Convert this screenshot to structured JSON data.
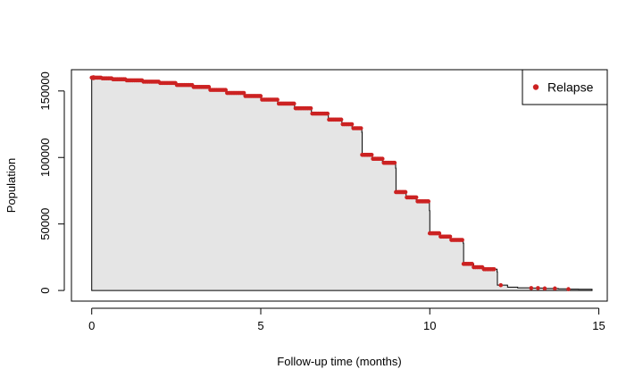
{
  "chart_data": {
    "type": "area",
    "xlabel": "Follow-up time (months)",
    "ylabel": "Population",
    "xlim": [
      -0.6,
      15.25
    ],
    "ylim": [
      -8000,
      166000
    ],
    "x_ticks": [
      0,
      5,
      10,
      15
    ],
    "x_tick_labels": [
      "0",
      "5",
      "10",
      "15"
    ],
    "y_ticks": [
      0,
      50000,
      100000,
      150000
    ],
    "y_tick_labels": [
      "0",
      "50000",
      "100000",
      "150000"
    ],
    "grid": false,
    "legend": {
      "position": "top-right",
      "entries": [
        "Relapse"
      ]
    },
    "colors": {
      "fill": "#e5e5e5",
      "edge": "#000000",
      "points": "#cc2222"
    },
    "series": [
      {
        "name": "Relapse",
        "x": [
          0,
          0.3,
          0.6,
          1.0,
          1.5,
          2.0,
          2.5,
          3.0,
          3.5,
          4.0,
          4.5,
          5.0,
          5.5,
          6.0,
          6.5,
          7.0,
          7.4,
          7.7,
          7.99,
          8.0,
          8.3,
          8.6,
          8.99,
          9.0,
          9.3,
          9.6,
          9.99,
          10.0,
          10.3,
          10.6,
          10.99,
          11.0,
          11.3,
          11.6,
          11.99,
          12.0,
          12.3,
          12.6,
          13.0,
          13.4,
          13.8,
          14.1,
          14.4,
          14.8
        ],
        "y": [
          160000,
          159500,
          158800,
          158000,
          157000,
          156000,
          154500,
          153000,
          150800,
          148500,
          146200,
          143500,
          140500,
          137000,
          133000,
          128500,
          125000,
          122000,
          119000,
          102000,
          99000,
          96000,
          92000,
          74000,
          70000,
          67000,
          60000,
          43000,
          40500,
          38000,
          35500,
          20000,
          17500,
          16000,
          14000,
          4000,
          2500,
          2000,
          1800,
          1500,
          1200,
          1000,
          900,
          800
        ]
      }
    ]
  }
}
